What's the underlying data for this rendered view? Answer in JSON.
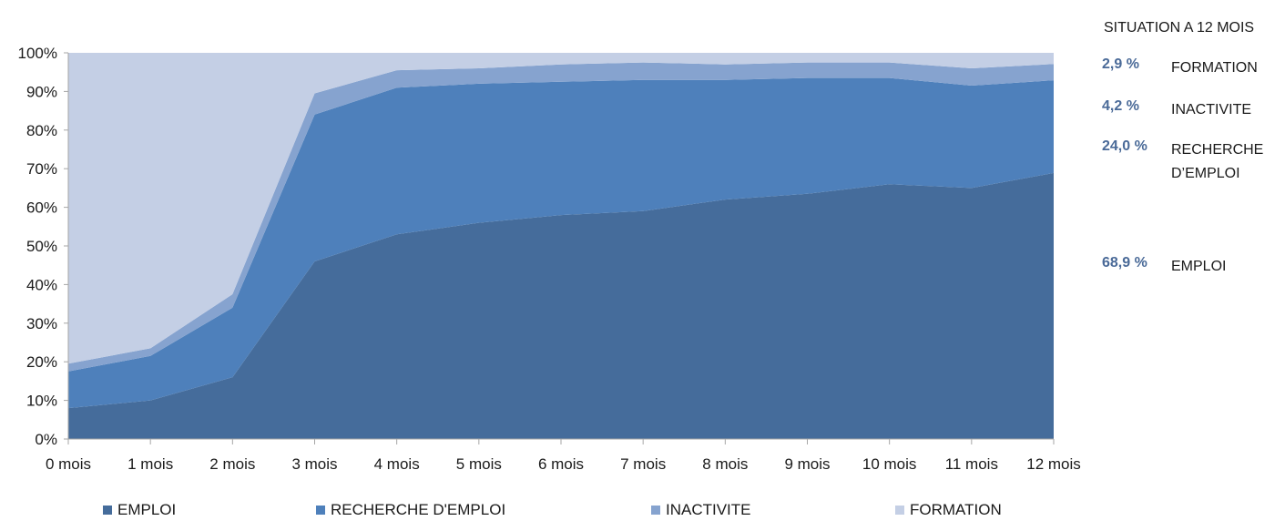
{
  "chart_data": {
    "type": "area",
    "stacked": true,
    "normalized": true,
    "categories": [
      "0 mois",
      "1 mois",
      "2 mois",
      "3 mois",
      "4 mois",
      "5 mois",
      "6 mois",
      "7 mois",
      "8 mois",
      "9 mois",
      "10 mois",
      "11 mois",
      "12 mois"
    ],
    "series": [
      {
        "name": "EMPLOI",
        "color": "#456c9b",
        "values": [
          8,
          10,
          16,
          46,
          53,
          56,
          58,
          59,
          62,
          63.5,
          66,
          65,
          68.9
        ]
      },
      {
        "name": "RECHERCHE D'EMPLOI",
        "color": "#4e80bb",
        "values": [
          9.5,
          11.5,
          18,
          38,
          38,
          36,
          34.5,
          34,
          31,
          30,
          27.5,
          26.5,
          24.0
        ]
      },
      {
        "name": "INACTIVITE",
        "color": "#86a3cf",
        "values": [
          2,
          2,
          3.5,
          5.5,
          4.5,
          4,
          4.5,
          4.5,
          4,
          4,
          4,
          4.5,
          4.2
        ]
      },
      {
        "name": "FORMATION",
        "color": "#c4cfe5",
        "values": [
          80.5,
          76.5,
          62.5,
          10.5,
          4.5,
          4,
          3,
          2.5,
          3,
          2.5,
          2.5,
          4,
          2.9
        ]
      }
    ],
    "yticks": [
      "0%",
      "10%",
      "20%",
      "30%",
      "40%",
      "50%",
      "60%",
      "70%",
      "80%",
      "90%",
      "100%"
    ],
    "ylim": [
      0,
      100
    ],
    "legend_position": "bottom",
    "grid": false
  },
  "side_panel": {
    "title": "SITUATION A  12 MOIS",
    "rows": [
      {
        "pct": "2,9 %",
        "label_lines": [
          "FORMATION"
        ]
      },
      {
        "pct": "4,2 %",
        "label_lines": [
          "INACTIVITE"
        ]
      },
      {
        "pct": "24,0 %",
        "label_lines": [
          "RECHERCHE",
          "D’EMPLOI"
        ]
      },
      {
        "pct": "68,9 %",
        "label_lines": [
          "EMPLOI"
        ]
      }
    ]
  }
}
